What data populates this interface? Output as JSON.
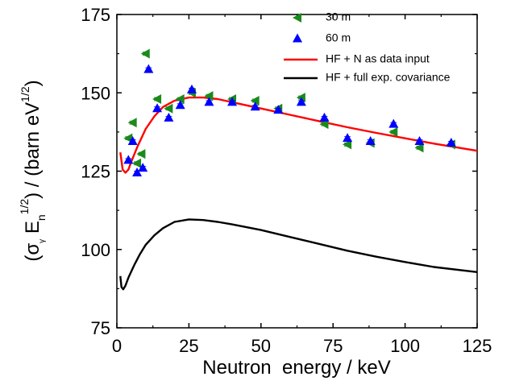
{
  "chart_data": {
    "type": "scatter",
    "xlabel": "Neutron  energy / keV",
    "ylabel_parts": {
      "open": "(σ",
      "sub_gamma": "γ",
      "E": " E",
      "sub_n": "n",
      "sup_half": "1/2",
      "close": ") / (barn eV",
      "unit_sup": "1/2",
      "end": ")"
    },
    "xlim": [
      0,
      125
    ],
    "ylim": [
      75,
      175
    ],
    "x_ticks": [
      0,
      25,
      50,
      75,
      100,
      125
    ],
    "y_ticks": [
      75,
      100,
      125,
      150,
      175
    ],
    "x_tick_labels": [
      "0",
      "25",
      "50",
      "75",
      "100",
      "125"
    ],
    "y_tick_labels": [
      "75",
      "100",
      "125",
      "150",
      "175"
    ],
    "grid": false,
    "legend_position": "top-right",
    "series": [
      {
        "name": "30 m",
        "kind": "scatter",
        "marker": "triangle-left",
        "color": "#1a8a1a",
        "points": [
          [
            4,
            135.5
          ],
          [
            5.5,
            140.5
          ],
          [
            7,
            127.5
          ],
          [
            8.5,
            130.5
          ],
          [
            10,
            162.5
          ],
          [
            14,
            148
          ],
          [
            18,
            145
          ],
          [
            22,
            148
          ],
          [
            26,
            150
          ],
          [
            32,
            149
          ],
          [
            40,
            148
          ],
          [
            48,
            147.5
          ],
          [
            56,
            145
          ],
          [
            64,
            148.5
          ],
          [
            72,
            140
          ],
          [
            80,
            133.5
          ],
          [
            88,
            134
          ],
          [
            96,
            137.5
          ],
          [
            105,
            132.5
          ],
          [
            116,
            133.5
          ]
        ]
      },
      {
        "name": "60 m",
        "kind": "scatter",
        "marker": "triangle-up",
        "color": "#0000ff",
        "points": [
          [
            4,
            128.5
          ],
          [
            5.5,
            134.5
          ],
          [
            7,
            124.5
          ],
          [
            9,
            126
          ],
          [
            11,
            157.5
          ],
          [
            14,
            145
          ],
          [
            18,
            142
          ],
          [
            22,
            146
          ],
          [
            26,
            151
          ],
          [
            32,
            147
          ],
          [
            40,
            147
          ],
          [
            48,
            145.5
          ],
          [
            56,
            144.5
          ],
          [
            64,
            147
          ],
          [
            72,
            142
          ],
          [
            80,
            135.5
          ],
          [
            88,
            134.5
          ],
          [
            96,
            140
          ],
          [
            105,
            134.5
          ],
          [
            116,
            134
          ]
        ]
      },
      {
        "name": "HF + N as data input",
        "kind": "line",
        "color": "#ff0000",
        "points": [
          [
            1.2,
            131
          ],
          [
            2,
            125.5
          ],
          [
            3,
            124.5
          ],
          [
            4,
            125.5
          ],
          [
            5,
            128
          ],
          [
            7,
            132.5
          ],
          [
            10,
            138.5
          ],
          [
            13,
            142.5
          ],
          [
            16,
            145.5
          ],
          [
            20,
            147.5
          ],
          [
            25,
            148.5
          ],
          [
            30,
            148.5
          ],
          [
            35,
            148
          ],
          [
            40,
            147
          ],
          [
            50,
            145
          ],
          [
            60,
            143
          ],
          [
            70,
            141
          ],
          [
            80,
            139
          ],
          [
            90,
            137.2
          ],
          [
            100,
            135.5
          ],
          [
            110,
            133.8
          ],
          [
            125,
            131.5
          ]
        ]
      },
      {
        "name": "HF + full exp. covariance",
        "kind": "line",
        "color": "#000000",
        "points": [
          [
            1.2,
            91.5
          ],
          [
            1.6,
            88
          ],
          [
            2.2,
            87.3
          ],
          [
            3,
            88.5
          ],
          [
            4,
            91
          ],
          [
            6,
            95
          ],
          [
            8,
            98.5
          ],
          [
            10,
            101.5
          ],
          [
            13,
            104.5
          ],
          [
            16,
            106.8
          ],
          [
            20,
            108.8
          ],
          [
            25,
            109.6
          ],
          [
            30,
            109.4
          ],
          [
            35,
            108.8
          ],
          [
            40,
            108
          ],
          [
            50,
            106.2
          ],
          [
            60,
            104
          ],
          [
            70,
            101.8
          ],
          [
            80,
            99.6
          ],
          [
            90,
            97.7
          ],
          [
            100,
            96
          ],
          [
            110,
            94.4
          ],
          [
            125,
            92.8
          ]
        ]
      }
    ]
  },
  "colors": {
    "green": "#1a8a1a",
    "blue": "#0000ff",
    "red": "#ff0000",
    "black": "#000000"
  }
}
